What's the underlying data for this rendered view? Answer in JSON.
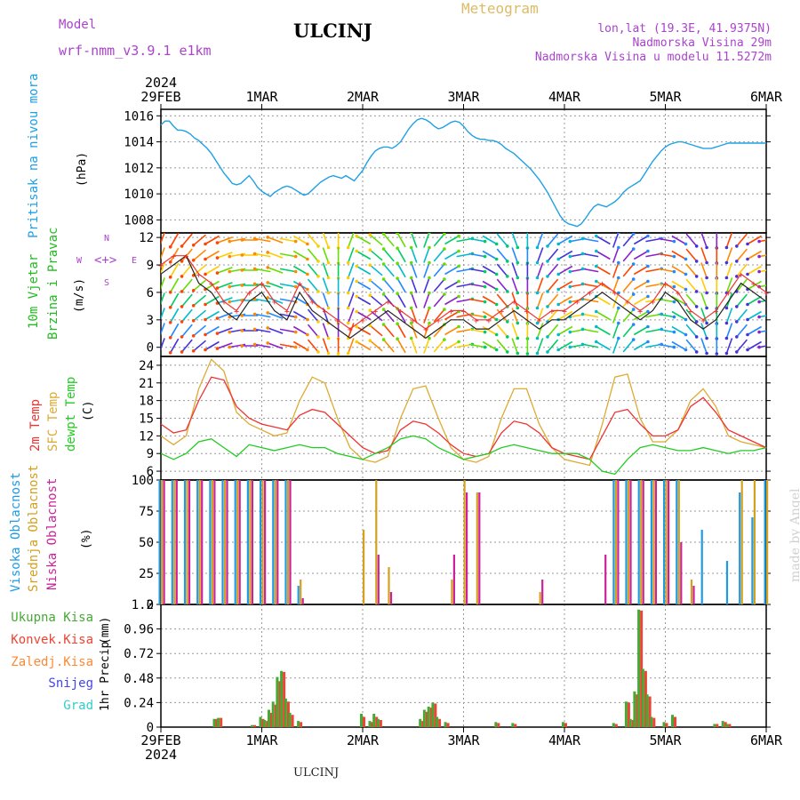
{
  "header": {
    "model_label": "Model",
    "model_name": "wrf-nmm_v3.9.1  e1km",
    "station": "ULCINJ",
    "meteogram_label": "Meteogram",
    "lonlat": "lon,lat (19.3E, 41.9375N)",
    "elevation": "Nadmorska Visina 29m",
    "model_elevation": "Nadmorska Visina u modelu 11.5272m"
  },
  "footer": {
    "station": "ULCINJ"
  },
  "watermark": "made by Angel",
  "colors": {
    "pressure": "#1ea0e6",
    "wind_label": "#22bb22",
    "temp2m": "#ee3333",
    "sfc_temp": "#ddaa33",
    "dewpoint": "#22cc22",
    "high_cloud": "#1e9be6",
    "mid_cloud": "#d4a020",
    "low_cloud": "#cc2299",
    "precip_total": "#44aa33",
    "precip_conv": "#ee4433",
    "precip_frz": "#ff8833",
    "snow": "#4444ee",
    "graupel": "#33cccc",
    "title_model": "#aa44cc",
    "meteogram": "#ddbb66"
  },
  "time_axis": {
    "year": "2024",
    "labels": [
      "29FEB",
      "1MAR",
      "2MAR",
      "3MAR",
      "4MAR",
      "5MAR",
      "6MAR"
    ]
  },
  "chart_data": [
    {
      "type": "line",
      "panel": "pressure",
      "ylabel_left": "Pritisak na nivou mora",
      "unit": "(hPa)",
      "ylim": [
        1007,
        1016.5
      ],
      "yticks": [
        1008,
        1010,
        1012,
        1014,
        1016
      ],
      "x_unit": "hours since 29FEB 00:00",
      "x": [
        0,
        1,
        2,
        3,
        4,
        5,
        6,
        7,
        8,
        9,
        10,
        11,
        12,
        13,
        14,
        15,
        16,
        17,
        18,
        19,
        20,
        21,
        22,
        23,
        24,
        25,
        26,
        27,
        28,
        29,
        30,
        31,
        32,
        33,
        34,
        35,
        36,
        37,
        38,
        39,
        40,
        41,
        42,
        43,
        44,
        45,
        46,
        47,
        48,
        49,
        50,
        51,
        52,
        53,
        54,
        55,
        56,
        57,
        58,
        59,
        60,
        61,
        62,
        63,
        64,
        65,
        66,
        67,
        68,
        69,
        70,
        71,
        72,
        73,
        74,
        75,
        76,
        77,
        78,
        79,
        80,
        81,
        82,
        83,
        84,
        85,
        86,
        87,
        88,
        89,
        90,
        91,
        92,
        93,
        94,
        95,
        96,
        97,
        98,
        99,
        100,
        101,
        102,
        103,
        104,
        105,
        106,
        107,
        108,
        109,
        110,
        111,
        112,
        113,
        114,
        115,
        116,
        117,
        118,
        119,
        120,
        121,
        122,
        123,
        124,
        125,
        126,
        127,
        128,
        129,
        130,
        131,
        132,
        133,
        134,
        135,
        136,
        137,
        138,
        139,
        140,
        141,
        142,
        143,
        144
      ],
      "series": [
        {
          "values": [
            1015.3,
            1015.6,
            1015.6,
            1015.2,
            1014.9,
            1014.9,
            1014.8,
            1014.6,
            1014.3,
            1014.1,
            1013.8,
            1013.5,
            1013.1,
            1012.6,
            1012.1,
            1011.6,
            1011.2,
            1010.8,
            1010.7,
            1010.8,
            1011.1,
            1011.4,
            1011.0,
            1010.5,
            1010.2,
            1010.0,
            1009.8,
            1010.1,
            1010.3,
            1010.5,
            1010.6,
            1010.5,
            1010.3,
            1010.1,
            1009.9,
            1010.0,
            1010.3,
            1010.6,
            1010.9,
            1011.1,
            1011.3,
            1011.4,
            1011.3,
            1011.2,
            1011.4,
            1011.2,
            1011.0,
            1011.4,
            1011.8,
            1012.4,
            1012.9,
            1013.3,
            1013.5,
            1013.6,
            1013.6,
            1013.5,
            1013.7,
            1014.0,
            1014.5,
            1015.0,
            1015.4,
            1015.7,
            1015.8,
            1015.7,
            1015.5,
            1015.2,
            1015.0,
            1015.1,
            1015.3,
            1015.5,
            1015.6,
            1015.5,
            1015.2,
            1014.8,
            1014.5,
            1014.3,
            1014.2,
            1014.2,
            1014.1,
            1014.1,
            1014.0,
            1013.8,
            1013.5,
            1013.3,
            1013.1,
            1012.8,
            1012.5,
            1012.2,
            1011.9,
            1011.5,
            1011.1,
            1010.6,
            1010.1,
            1009.5,
            1008.9,
            1008.3,
            1007.9,
            1007.7,
            1007.6,
            1007.5,
            1007.7,
            1008.1,
            1008.6,
            1009.0,
            1009.2,
            1009.1,
            1009.0,
            1009.2,
            1009.4,
            1009.7,
            1010.1,
            1010.4,
            1010.6,
            1010.8,
            1011.0,
            1011.5,
            1012.0,
            1012.5,
            1012.9,
            1013.3,
            1013.6,
            1013.8,
            1013.9,
            1014.0,
            1014.0,
            1013.9,
            1013.8,
            1013.7,
            1013.6,
            1013.5,
            1013.5,
            1013.5,
            1013.6,
            1013.7,
            1013.8,
            1013.9,
            1013.9,
            1013.9,
            1013.9,
            1013.9,
            1013.9,
            1013.9,
            1013.9,
            1013.9,
            1013.9
          ]
        }
      ]
    },
    {
      "type": "line",
      "panel": "wind",
      "ylabel_left": [
        "10m Vjetar",
        "Brzina i Pravac"
      ],
      "unit": "(m/s)",
      "compass": {
        "n": "N",
        "s": "S",
        "e": "E",
        "w": "W"
      },
      "ylim": [
        -1,
        12.5
      ],
      "yticks": [
        0,
        3,
        6,
        9,
        12
      ],
      "x": [
        0,
        3,
        6,
        9,
        12,
        15,
        18,
        21,
        24,
        27,
        30,
        33,
        36,
        39,
        42,
        45,
        48,
        51,
        54,
        57,
        60,
        63,
        66,
        69,
        72,
        75,
        78,
        81,
        84,
        87,
        90,
        93,
        96,
        99,
        102,
        105,
        108,
        111,
        114,
        117,
        120,
        123,
        126,
        129,
        132,
        135,
        138,
        141,
        144
      ],
      "series": [
        {
          "role": "speed",
          "values": [
            8,
            9,
            10,
            7,
            6,
            4,
            3,
            5,
            6,
            4,
            3,
            6,
            4,
            3,
            2,
            1,
            2,
            3,
            4,
            3,
            2,
            1,
            2,
            3,
            3,
            2,
            2,
            3,
            4,
            3,
            2,
            3,
            3,
            4,
            5,
            6,
            5,
            4,
            3,
            4,
            6,
            5,
            3,
            2,
            3,
            5,
            7,
            6,
            5
          ]
        },
        {
          "role": "gust",
          "values": [
            9,
            10,
            10,
            8,
            7,
            5,
            4,
            6,
            7,
            5,
            4,
            7,
            5,
            4,
            3,
            2,
            3,
            4,
            5,
            4,
            3,
            2,
            3,
            4,
            4,
            3,
            3,
            4,
            5,
            4,
            3,
            4,
            4,
            5,
            6,
            7,
            6,
            5,
            4,
            5,
            7,
            6,
            4,
            3,
            4,
            6,
            8,
            7,
            6
          ]
        }
      ],
      "wind_dir_deg": [
        200,
        210,
        220,
        230,
        240,
        250,
        260,
        270,
        280,
        290,
        100,
        120,
        140,
        160,
        180,
        200,
        300,
        310,
        320,
        330,
        340,
        20,
        40,
        60,
        80,
        100,
        120,
        140,
        160,
        180,
        200,
        220,
        240,
        260,
        280,
        300,
        20,
        40,
        60,
        80,
        100,
        120,
        140,
        160,
        180,
        200,
        220,
        240,
        260
      ]
    },
    {
      "type": "line",
      "panel": "temperature",
      "ylabel_left": [
        "2m Temp",
        "SFC Temp",
        "dewpt Temp"
      ],
      "unit": "(C)",
      "ylim": [
        4.5,
        25.5
      ],
      "yticks": [
        6,
        9,
        12,
        15,
        18,
        21,
        24
      ],
      "x": [
        0,
        3,
        6,
        9,
        12,
        15,
        18,
        21,
        24,
        27,
        30,
        33,
        36,
        39,
        42,
        45,
        48,
        51,
        54,
        57,
        60,
        63,
        66,
        69,
        72,
        75,
        78,
        81,
        84,
        87,
        90,
        93,
        96,
        99,
        102,
        105,
        108,
        111,
        114,
        117,
        120,
        123,
        126,
        129,
        132,
        135,
        138,
        141,
        144
      ],
      "series": [
        {
          "name": "2m Temp",
          "values": [
            14,
            12.5,
            13,
            18,
            22,
            21.5,
            17,
            15,
            14,
            13.5,
            13,
            15.5,
            16.5,
            16,
            14,
            12,
            10,
            9,
            9.5,
            13,
            14.5,
            14,
            12.5,
            10.5,
            9,
            8.5,
            9,
            12.5,
            14.5,
            14,
            12.5,
            10,
            9,
            8.5,
            8,
            12,
            16,
            16.5,
            14,
            12,
            12,
            13,
            17,
            18.5,
            16,
            13,
            12,
            11,
            10
          ]
        },
        {
          "name": "SFC Temp",
          "values": [
            12,
            10.5,
            12,
            20,
            25,
            23,
            16,
            14,
            13,
            12,
            12.5,
            18,
            22,
            21,
            15,
            10,
            8,
            7.5,
            8.5,
            15,
            20,
            20.5,
            15,
            10,
            8,
            7.5,
            8.5,
            15,
            20,
            20,
            14,
            10,
            8,
            7.5,
            7,
            14,
            22,
            22.5,
            15,
            11,
            11,
            13,
            18,
            20,
            17,
            12,
            11,
            10.5,
            10
          ]
        },
        {
          "name": "dewpt Temp",
          "values": [
            9,
            8,
            9,
            11,
            11.5,
            10,
            8.5,
            10.5,
            10,
            9.5,
            10,
            10.5,
            10,
            10,
            9,
            8.5,
            8,
            9,
            10,
            11.5,
            12,
            11.5,
            10,
            9,
            8,
            8.5,
            9,
            10,
            10.5,
            10,
            9.5,
            9,
            9,
            9,
            8,
            6,
            5.5,
            8,
            10,
            10.5,
            10,
            9.5,
            9.5,
            10,
            9.5,
            9,
            9.5,
            9.5,
            10
          ]
        }
      ]
    },
    {
      "type": "bar",
      "panel": "cloud",
      "ylabel_left": [
        "Visoka Oblacnost",
        "Srednja Oblacnost",
        "Niska Oblacnost"
      ],
      "unit": "(%)",
      "ylim": [
        0,
        100
      ],
      "yticks": [
        0,
        25,
        50,
        75,
        100
      ],
      "x": [
        0,
        3,
        6,
        9,
        12,
        15,
        18,
        21,
        24,
        27,
        30,
        33,
        36,
        39,
        42,
        45,
        48,
        51,
        54,
        57,
        60,
        63,
        66,
        69,
        72,
        75,
        78,
        81,
        84,
        87,
        90,
        93,
        96,
        99,
        102,
        105,
        108,
        111,
        114,
        117,
        120,
        123,
        126,
        129,
        132,
        135,
        138,
        141,
        144
      ],
      "series": [
        {
          "name": "Visoka Oblacnost",
          "values": [
            100,
            100,
            100,
            100,
            100,
            100,
            100,
            100,
            100,
            100,
            100,
            15,
            0,
            0,
            0,
            0,
            0,
            0,
            0,
            0,
            0,
            0,
            0,
            0,
            0,
            0,
            0,
            0,
            0,
            0,
            0,
            0,
            0,
            0,
            0,
            0,
            100,
            100,
            100,
            100,
            100,
            100,
            0,
            60,
            0,
            35,
            90,
            70,
            100
          ]
        },
        {
          "name": "Srednja Oblacnost",
          "values": [
            100,
            100,
            100,
            100,
            100,
            100,
            100,
            100,
            100,
            100,
            100,
            20,
            0,
            0,
            0,
            0,
            60,
            100,
            30,
            0,
            0,
            0,
            0,
            20,
            100,
            90,
            0,
            0,
            0,
            0,
            10,
            0,
            0,
            0,
            0,
            0,
            100,
            100,
            100,
            100,
            100,
            100,
            20,
            0,
            0,
            0,
            100,
            100,
            100
          ]
        },
        {
          "name": "Niska Oblacnost",
          "values": [
            100,
            100,
            100,
            100,
            100,
            100,
            100,
            100,
            100,
            100,
            100,
            5,
            0,
            0,
            0,
            0,
            0,
            40,
            10,
            0,
            0,
            0,
            0,
            40,
            90,
            90,
            0,
            0,
            0,
            0,
            20,
            0,
            0,
            0,
            0,
            40,
            100,
            100,
            100,
            100,
            100,
            50,
            15,
            0,
            0,
            0,
            0,
            0,
            0
          ]
        }
      ]
    },
    {
      "type": "bar",
      "panel": "precip",
      "ylabel_left": "1hr Precip",
      "unit": "(mm)",
      "ylim": [
        0,
        1.2
      ],
      "yticks": [
        0,
        0.24,
        0.48,
        0.72,
        0.96,
        1.2
      ],
      "legend": [
        "Ukupna Kisa",
        "Konvek.Kisa",
        "Zaledj.Kisa",
        "Snijeg",
        "Grad"
      ],
      "x": [
        13,
        14,
        22,
        24,
        25,
        26,
        27,
        28,
        29,
        30,
        31,
        33,
        48,
        50,
        51,
        52,
        62,
        63,
        64,
        65,
        66,
        68,
        80,
        84,
        96,
        108,
        111,
        112,
        113,
        114,
        115,
        116,
        117,
        120,
        122,
        132,
        134,
        135
      ],
      "series": [
        {
          "name": "Ukupna Kisa",
          "values": [
            0.08,
            0.09,
            0.02,
            0.1,
            0.07,
            0.17,
            0.25,
            0.49,
            0.55,
            0.28,
            0.14,
            0.06,
            0.13,
            0.06,
            0.13,
            0.08,
            0.08,
            0.17,
            0.2,
            0.24,
            0.1,
            0.05,
            0.05,
            0.04,
            0.05,
            0.04,
            0.25,
            0.08,
            0.35,
            1.15,
            0.57,
            0.32,
            0.1,
            0.05,
            0.12,
            0.03,
            0.06,
            0.03
          ]
        },
        {
          "name": "Konvek.Kisa",
          "values": [
            0.08,
            0.09,
            0.02,
            0.08,
            0.06,
            0.14,
            0.22,
            0.45,
            0.54,
            0.25,
            0.12,
            0.05,
            0.1,
            0.05,
            0.1,
            0.07,
            0.06,
            0.15,
            0.19,
            0.23,
            0.08,
            0.04,
            0.04,
            0.03,
            0.04,
            0.03,
            0.24,
            0.07,
            0.32,
            1.14,
            0.55,
            0.3,
            0.09,
            0.04,
            0.1,
            0.03,
            0.05,
            0.03
          ]
        }
      ]
    }
  ]
}
